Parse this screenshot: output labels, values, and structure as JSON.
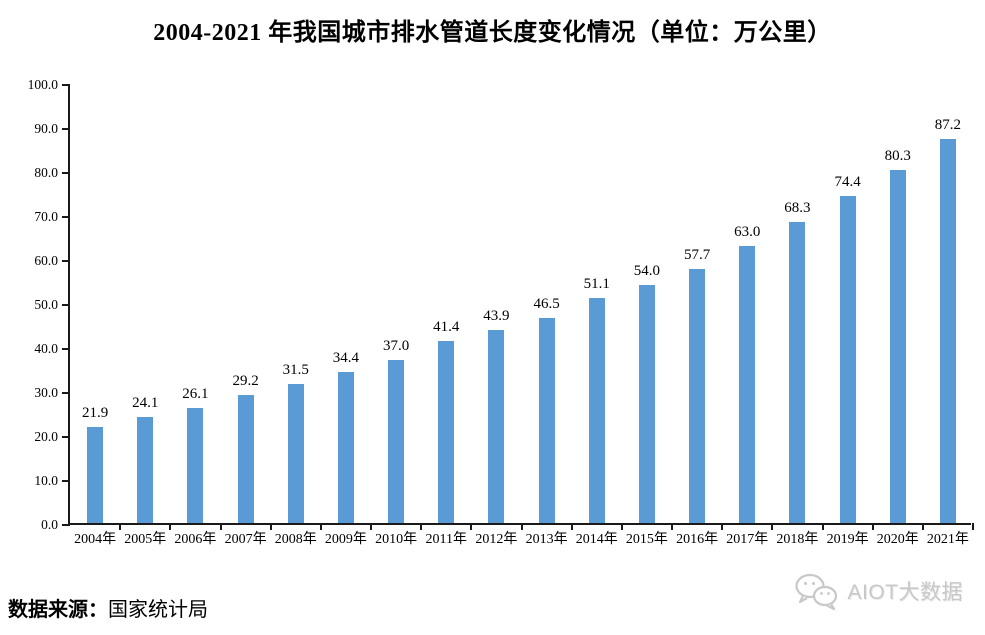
{
  "title": "2004-2021 年我国城市排水管道长度变化情况（单位：万公里）",
  "source": {
    "prefix": "数据来源：",
    "name": "国家统计局"
  },
  "watermark": {
    "icon": "wechat-icon",
    "text": "AIOT大数据"
  },
  "colors": {
    "bar": "#5B9BD5",
    "axis": "#1a1a1a",
    "text": "#000000",
    "watermark": "#c8c8c8"
  },
  "chart_data": {
    "type": "bar",
    "title": "2004-2021 年我国城市排水管道长度变化情况（单位：万公里）",
    "categories": [
      "2004年",
      "2005年",
      "2006年",
      "2007年",
      "2008年",
      "2009年",
      "2010年",
      "2011年",
      "2012年",
      "2013年",
      "2014年",
      "2015年",
      "2016年",
      "2017年",
      "2018年",
      "2019年",
      "2020年",
      "2021年"
    ],
    "values": [
      21.9,
      24.1,
      26.1,
      29.2,
      31.5,
      34.4,
      37.0,
      41.4,
      43.9,
      46.5,
      51.1,
      54.0,
      57.7,
      63.0,
      68.3,
      74.4,
      80.3,
      87.2
    ],
    "value_labels": [
      "21.9",
      "24.1",
      "26.1",
      "29.2",
      "31.5",
      "34.4",
      "37.0",
      "41.4",
      "43.9",
      "46.5",
      "51.1",
      "54.0",
      "57.7",
      "63.0",
      "68.3",
      "74.4",
      "80.3",
      "87.2"
    ],
    "xlabel": "",
    "ylabel": "",
    "ylim": [
      0,
      100
    ],
    "ytick_step": 10,
    "yticks": [
      "0.0",
      "10.0",
      "20.0",
      "30.0",
      "40.0",
      "50.0",
      "60.0",
      "70.0",
      "80.0",
      "90.0",
      "100.0"
    ],
    "grid": false,
    "legend": "none",
    "bar_color": "#5B9BD5"
  }
}
